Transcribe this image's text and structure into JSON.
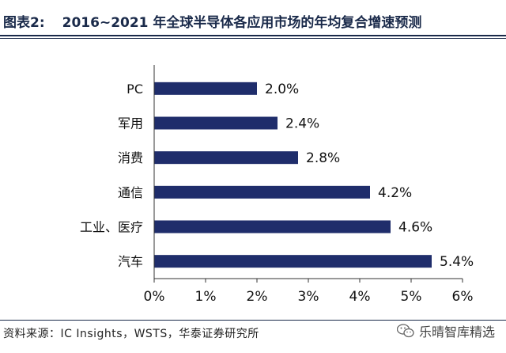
{
  "header": {
    "label": "图表2:",
    "title": "2016~2021 年全球半导体各应用市场的年均复合增速预测"
  },
  "chart_data": {
    "type": "bar",
    "orientation": "horizontal",
    "categories": [
      "PC",
      "军用",
      "消费",
      "通信",
      "工业、医疗",
      "汽车"
    ],
    "values": [
      2.0,
      2.4,
      2.8,
      4.2,
      4.6,
      5.4
    ],
    "value_labels": [
      "2.0%",
      "2.4%",
      "2.8%",
      "4.2%",
      "4.6%",
      "5.4%"
    ],
    "xlim": [
      0,
      6
    ],
    "xticks": [
      0,
      1,
      2,
      3,
      4,
      5,
      6
    ],
    "xtick_labels": [
      "0%",
      "1%",
      "2%",
      "3%",
      "4%",
      "5%",
      "6%"
    ],
    "grid": false,
    "bar_color": "#1f2d6b"
  },
  "footer": {
    "source": "资料来源：IC Insights，WSTS，华泰证券研究所",
    "watermark": "乐晴智库精选",
    "watermark_icon": "wechat-icon"
  }
}
